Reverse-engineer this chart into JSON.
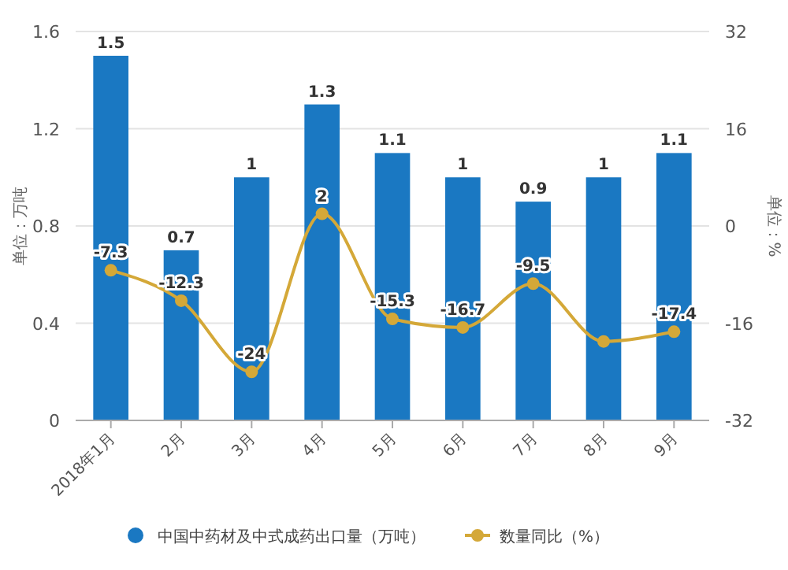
{
  "chart_data": {
    "type": "bar",
    "categories": [
      "2018年1月",
      "2月",
      "3月",
      "4月",
      "5月",
      "6月",
      "7月",
      "8月",
      "9月"
    ],
    "ylabel": "单位：万吨",
    "y2label": "单位：%",
    "series": [
      {
        "name": "中国中药材及中式成药出口量（万吨）",
        "color": "#1a78c2",
        "values": [
          1.5,
          0.7,
          1,
          1.3,
          1.1,
          1,
          0.9,
          1,
          1.1
        ],
        "value_labels": [
          "1.5",
          "0.7",
          "1",
          "1.3",
          "1.1",
          "1",
          "0.9",
          "1",
          "1.1"
        ]
      },
      {
        "name": "数量同比（%）",
        "type": "line",
        "axis": "y2",
        "color": "#d4a838",
        "values": [
          -7.3,
          -12.3,
          -24,
          2,
          -15.3,
          -16.7,
          -9.5,
          -19,
          -17.4
        ],
        "value_labels": [
          "-7.3",
          "-12.3",
          "-24",
          "2",
          "-15.3",
          "-16.7",
          "-9.5",
          null,
          "-17.4"
        ]
      }
    ],
    "ylim": [
      0,
      1.6
    ],
    "yticks": [
      0,
      0.4,
      0.8,
      1.2,
      1.6
    ],
    "y2lim": [
      -32,
      32
    ],
    "y2ticks": [
      -32,
      -16,
      0,
      16,
      32
    ],
    "grid": "y",
    "legend": "bottom",
    "marker": "circle"
  }
}
